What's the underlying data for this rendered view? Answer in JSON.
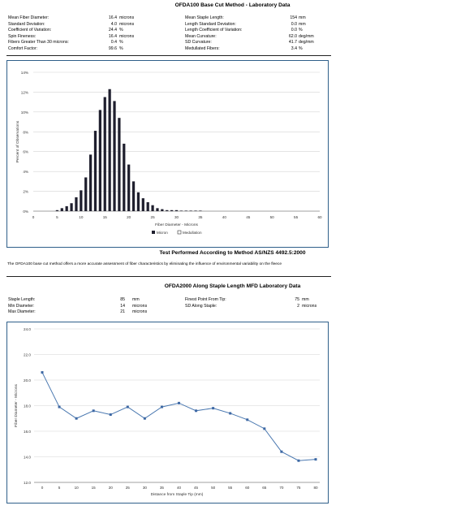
{
  "report": {
    "title1": "OFDA100 Base Cut Method - Laboratory Data",
    "stats_left": [
      {
        "label": "Mean Fiber Diameter:",
        "value": "16.4",
        "unit": "microns"
      },
      {
        "label": "Standard Deviation:",
        "value": "4.0",
        "unit": "microns"
      },
      {
        "label": "Coefficient of Variation:",
        "value": "24.4",
        "unit": "%"
      },
      {
        "label": "Spin Fineness:",
        "value": "16.4",
        "unit": "microns"
      },
      {
        "label": "Fibers Greater Than 30 microns:",
        "value": "0.4",
        "unit": "%"
      },
      {
        "label": "Comfort Factor:",
        "value": "99.6",
        "unit": "%"
      }
    ],
    "stats_right": [
      {
        "label": "Mean Staple Length:",
        "value": "154",
        "unit": "mm"
      },
      {
        "label": "Length Standard Deviation:",
        "value": "0.0",
        "unit": "mm"
      },
      {
        "label": "Length Coefficient of Variation:",
        "value": "0.0",
        "unit": "%"
      },
      {
        "label": "Mean Curvature:",
        "value": "62.0",
        "unit": "deg/mm"
      },
      {
        "label": "SD Curvature:",
        "value": "41.7",
        "unit": "deg/mm"
      },
      {
        "label": "Medullated Fibers:",
        "value": "3.4",
        "unit": "%"
      }
    ],
    "method_title": "Test Performed According to Method AS/NZS 4492.5:2000",
    "method_note": "The OFDA100 base cut method offers a more accurate assessment of fiber characteristics by eliminating the influence of environmental variability on the fleece",
    "title2": "OFDA2000 Along Staple Length MFD Laboratory Data",
    "stats2_left": [
      {
        "label": "Staple Length:",
        "value": "85",
        "unit": "mm"
      },
      {
        "label": "Min Diameter:",
        "value": "14",
        "unit": "microns"
      },
      {
        "label": "Max Diameter:",
        "value": "21",
        "unit": "microns"
      }
    ],
    "stats2_right": [
      {
        "label": "Finest Point From Tip:",
        "value": "75",
        "unit": "mm"
      },
      {
        "label": "SD Along Staple:",
        "value": "2",
        "unit": "microns"
      }
    ]
  },
  "colors": {
    "bar": "#1f1f2e",
    "line": "#4a78b0",
    "marker": "#3d68a4",
    "frame": "#2f5f8a"
  },
  "chart_data": [
    {
      "type": "bar",
      "title": "",
      "xlabel": "Fiber Diameter - Microns",
      "ylabel": "Percent of Observations",
      "xlim": [
        0,
        60
      ],
      "ylim": [
        0,
        14
      ],
      "x_ticks": [
        0,
        5,
        10,
        15,
        20,
        25,
        30,
        35,
        40,
        45,
        50,
        55,
        60
      ],
      "y_ticks": [
        "0%",
        "2%",
        "4%",
        "6%",
        "8%",
        "10%",
        "12%",
        "14%"
      ],
      "series": [
        {
          "name": "Micron",
          "x": [
            5,
            6,
            7,
            8,
            9,
            10,
            11,
            12,
            13,
            14,
            15,
            16,
            17,
            18,
            19,
            20,
            21,
            22,
            23,
            24,
            25,
            26,
            27,
            28,
            29,
            30,
            31,
            32,
            33,
            34,
            35
          ],
          "values": [
            0.1,
            0.3,
            0.5,
            0.8,
            1.4,
            2.1,
            3.4,
            5.7,
            8.1,
            10.2,
            11.5,
            12.3,
            11.1,
            9.4,
            6.8,
            4.7,
            3.0,
            1.9,
            1.3,
            0.9,
            0.6,
            0.3,
            0.2,
            0.1,
            0.1,
            0.1,
            0.05,
            0.05,
            0.05,
            0.05,
            0.05
          ]
        },
        {
          "name": "Medullation",
          "x": [],
          "values": []
        }
      ],
      "legend": "bottom"
    },
    {
      "type": "line",
      "title": "",
      "xlabel": "Distance from Staple Tip (mm)",
      "ylabel": "Fiber Diameter - Microns",
      "ylim": [
        12,
        24
      ],
      "y_ticks": [
        "12.0",
        "14.0",
        "16.0",
        "18.0",
        "20.0",
        "22.0",
        "24.0"
      ],
      "x": [
        0,
        5,
        10,
        15,
        20,
        25,
        30,
        35,
        40,
        45,
        50,
        55,
        60,
        65,
        70,
        75,
        80
      ],
      "values": [
        20.6,
        17.9,
        17.0,
        17.6,
        17.3,
        17.9,
        17.0,
        17.9,
        18.2,
        17.6,
        17.8,
        17.4,
        16.9,
        16.2,
        14.4,
        13.7,
        13.8
      ]
    }
  ]
}
